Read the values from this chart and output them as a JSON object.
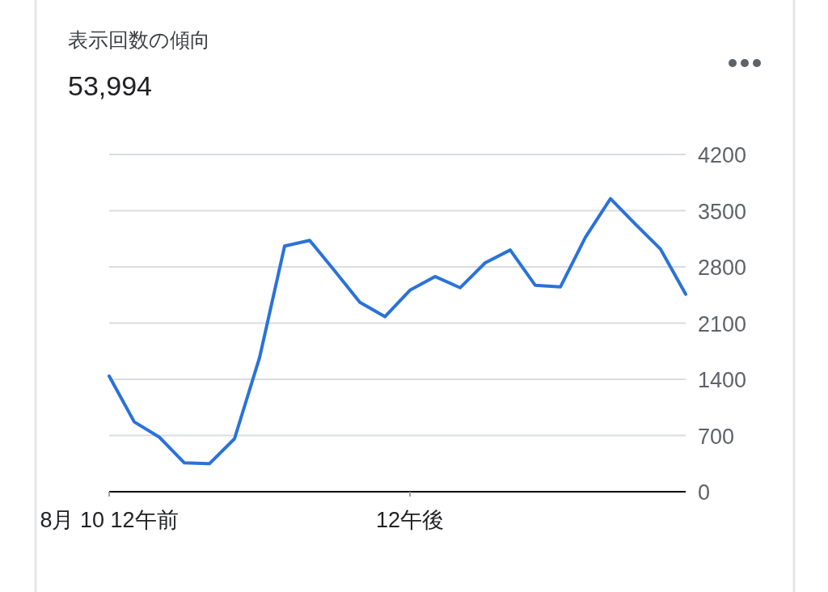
{
  "chart_data": {
    "type": "line",
    "title": "表示回数の傾向",
    "subtitle": "53,994",
    "categories": [
      "8月 10 12午前",
      null,
      null,
      null,
      null,
      null,
      null,
      null,
      null,
      null,
      null,
      null,
      "12午後",
      null,
      null,
      null,
      null,
      null,
      null,
      null,
      null,
      null,
      null,
      null
    ],
    "series": [
      {
        "color": "#2a72d9",
        "values": [
          1440,
          870,
          680,
          360,
          350,
          660,
          1670,
          3060,
          3130,
          2750,
          2360,
          2180,
          2510,
          2680,
          2540,
          2850,
          3010,
          2570,
          2550,
          3170,
          3650,
          3330,
          3020,
          2460
        ]
      }
    ],
    "ylim": [
      0,
      4200
    ],
    "yticks": [
      0,
      700,
      1400,
      2100,
      2800,
      3500,
      4200
    ],
    "grid": "y",
    "marker": "none",
    "line_style": "solid"
  }
}
